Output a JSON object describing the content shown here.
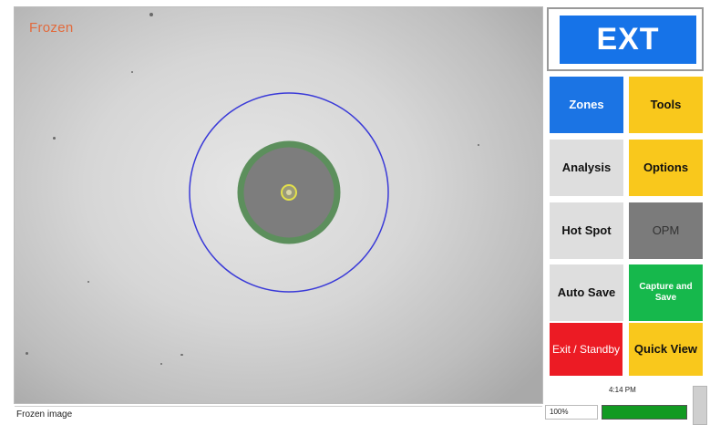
{
  "viewport": {
    "overlay_label": "Frozen"
  },
  "status": {
    "left_text": "Frozen image",
    "time": "4:14 PM",
    "zoom": "100%",
    "progress_percent": 100
  },
  "buttons": {
    "ext": "EXT",
    "zones": "Zones",
    "tools": "Tools",
    "analysis": "Analysis",
    "options": "Options",
    "hot_spot": "Hot Spot",
    "opm": "OPM",
    "auto_save": "Auto Save",
    "capture_save": "Capture and Save",
    "exit_standby": "Exit / Standby",
    "quick_view": "Quick View"
  },
  "colors": {
    "accent_blue": "#1673e8",
    "yellow": "#f9c81c",
    "green": "#16b84c",
    "red": "#ec1b24",
    "zone_ring": "#3a3ad8",
    "cladding_ring": "#5c8f5c",
    "core_ring": "#e3e04a"
  }
}
